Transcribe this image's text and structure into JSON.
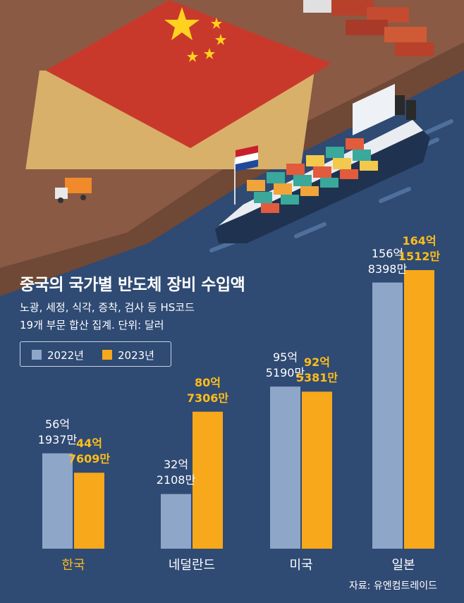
{
  "chart_data": {
    "type": "bar",
    "title": "중국의 국가별 반도체 장비 수입액",
    "subtitle_lines": [
      "노광, 세정, 식각, 증착, 검사 등 HS코드",
      "19개 부문 합산 집계. 단위: 달러"
    ],
    "categories": [
      "한국",
      "네덜란드",
      "미국",
      "일본"
    ],
    "series": [
      {
        "name": "2022년",
        "color": "#8ea6c8",
        "values": [
          5619370000,
          3221080000,
          9551900000,
          15683980000
        ],
        "labels": [
          [
            "56억",
            "1937만"
          ],
          [
            "32억",
            "2108만"
          ],
          [
            "95억",
            "5190만"
          ],
          [
            "156억",
            "8398만"
          ]
        ]
      },
      {
        "name": "2023년",
        "color": "#f7a81b",
        "values": [
          4476090000,
          8073060000,
          9253810000,
          16415120000
        ],
        "labels": [
          [
            "44억",
            "7609만"
          ],
          [
            "80억",
            "7306만"
          ],
          [
            "92억",
            "5381만"
          ],
          [
            "164억",
            "1512만"
          ]
        ]
      }
    ],
    "ylim": [
      0,
      16415120000
    ],
    "grid": false,
    "legend_position": "top-left",
    "highlight_category_color": "#ffbe1a",
    "source": "자료: 유엔컴트레이드"
  }
}
